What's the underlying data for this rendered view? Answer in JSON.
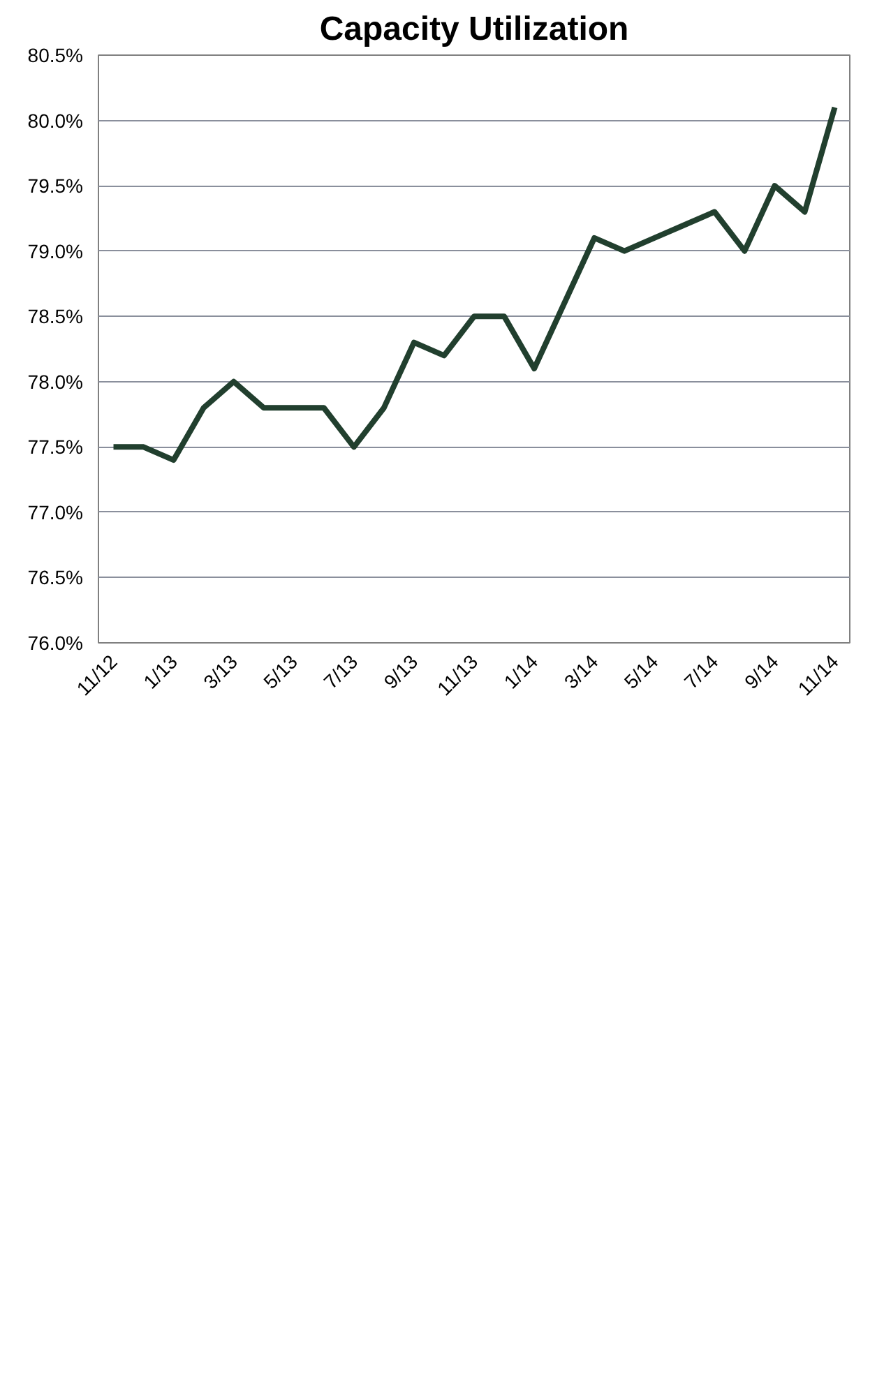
{
  "chart_data": {
    "type": "line",
    "title": "Capacity Utilization",
    "categories": [
      "11/12",
      null,
      "1/13",
      null,
      "3/13",
      null,
      "5/13",
      null,
      "7/13",
      null,
      "9/13",
      null,
      "11/13",
      null,
      "1/14",
      null,
      "3/14",
      null,
      "5/14",
      null,
      "7/14",
      null,
      "9/14",
      null,
      "11/14"
    ],
    "series": [
      {
        "color": "#213f2e",
        "values": [
          77.5,
          77.5,
          77.4,
          77.8,
          78.0,
          77.8,
          77.8,
          77.8,
          77.5,
          77.8,
          78.3,
          78.2,
          78.5,
          78.5,
          78.1,
          78.6,
          79.1,
          79.0,
          79.1,
          79.2,
          79.3,
          79.0,
          79.5,
          79.3,
          80.1
        ]
      }
    ],
    "ylim": [
      76.0,
      80.5
    ],
    "yticks": [
      {
        "value": 76.0,
        "label": "76.0%"
      },
      {
        "value": 76.5,
        "label": "76.5%"
      },
      {
        "value": 77.0,
        "label": "77.0%"
      },
      {
        "value": 77.5,
        "label": "77.5%"
      },
      {
        "value": 78.0,
        "label": "78.0%"
      },
      {
        "value": 78.5,
        "label": "78.5%"
      },
      {
        "value": 79.0,
        "label": "79.0%"
      },
      {
        "value": 79.5,
        "label": "79.5%"
      },
      {
        "value": 80.0,
        "label": "80.0%"
      },
      {
        "value": 80.5,
        "label": "80.5%"
      }
    ],
    "grid": "y"
  }
}
